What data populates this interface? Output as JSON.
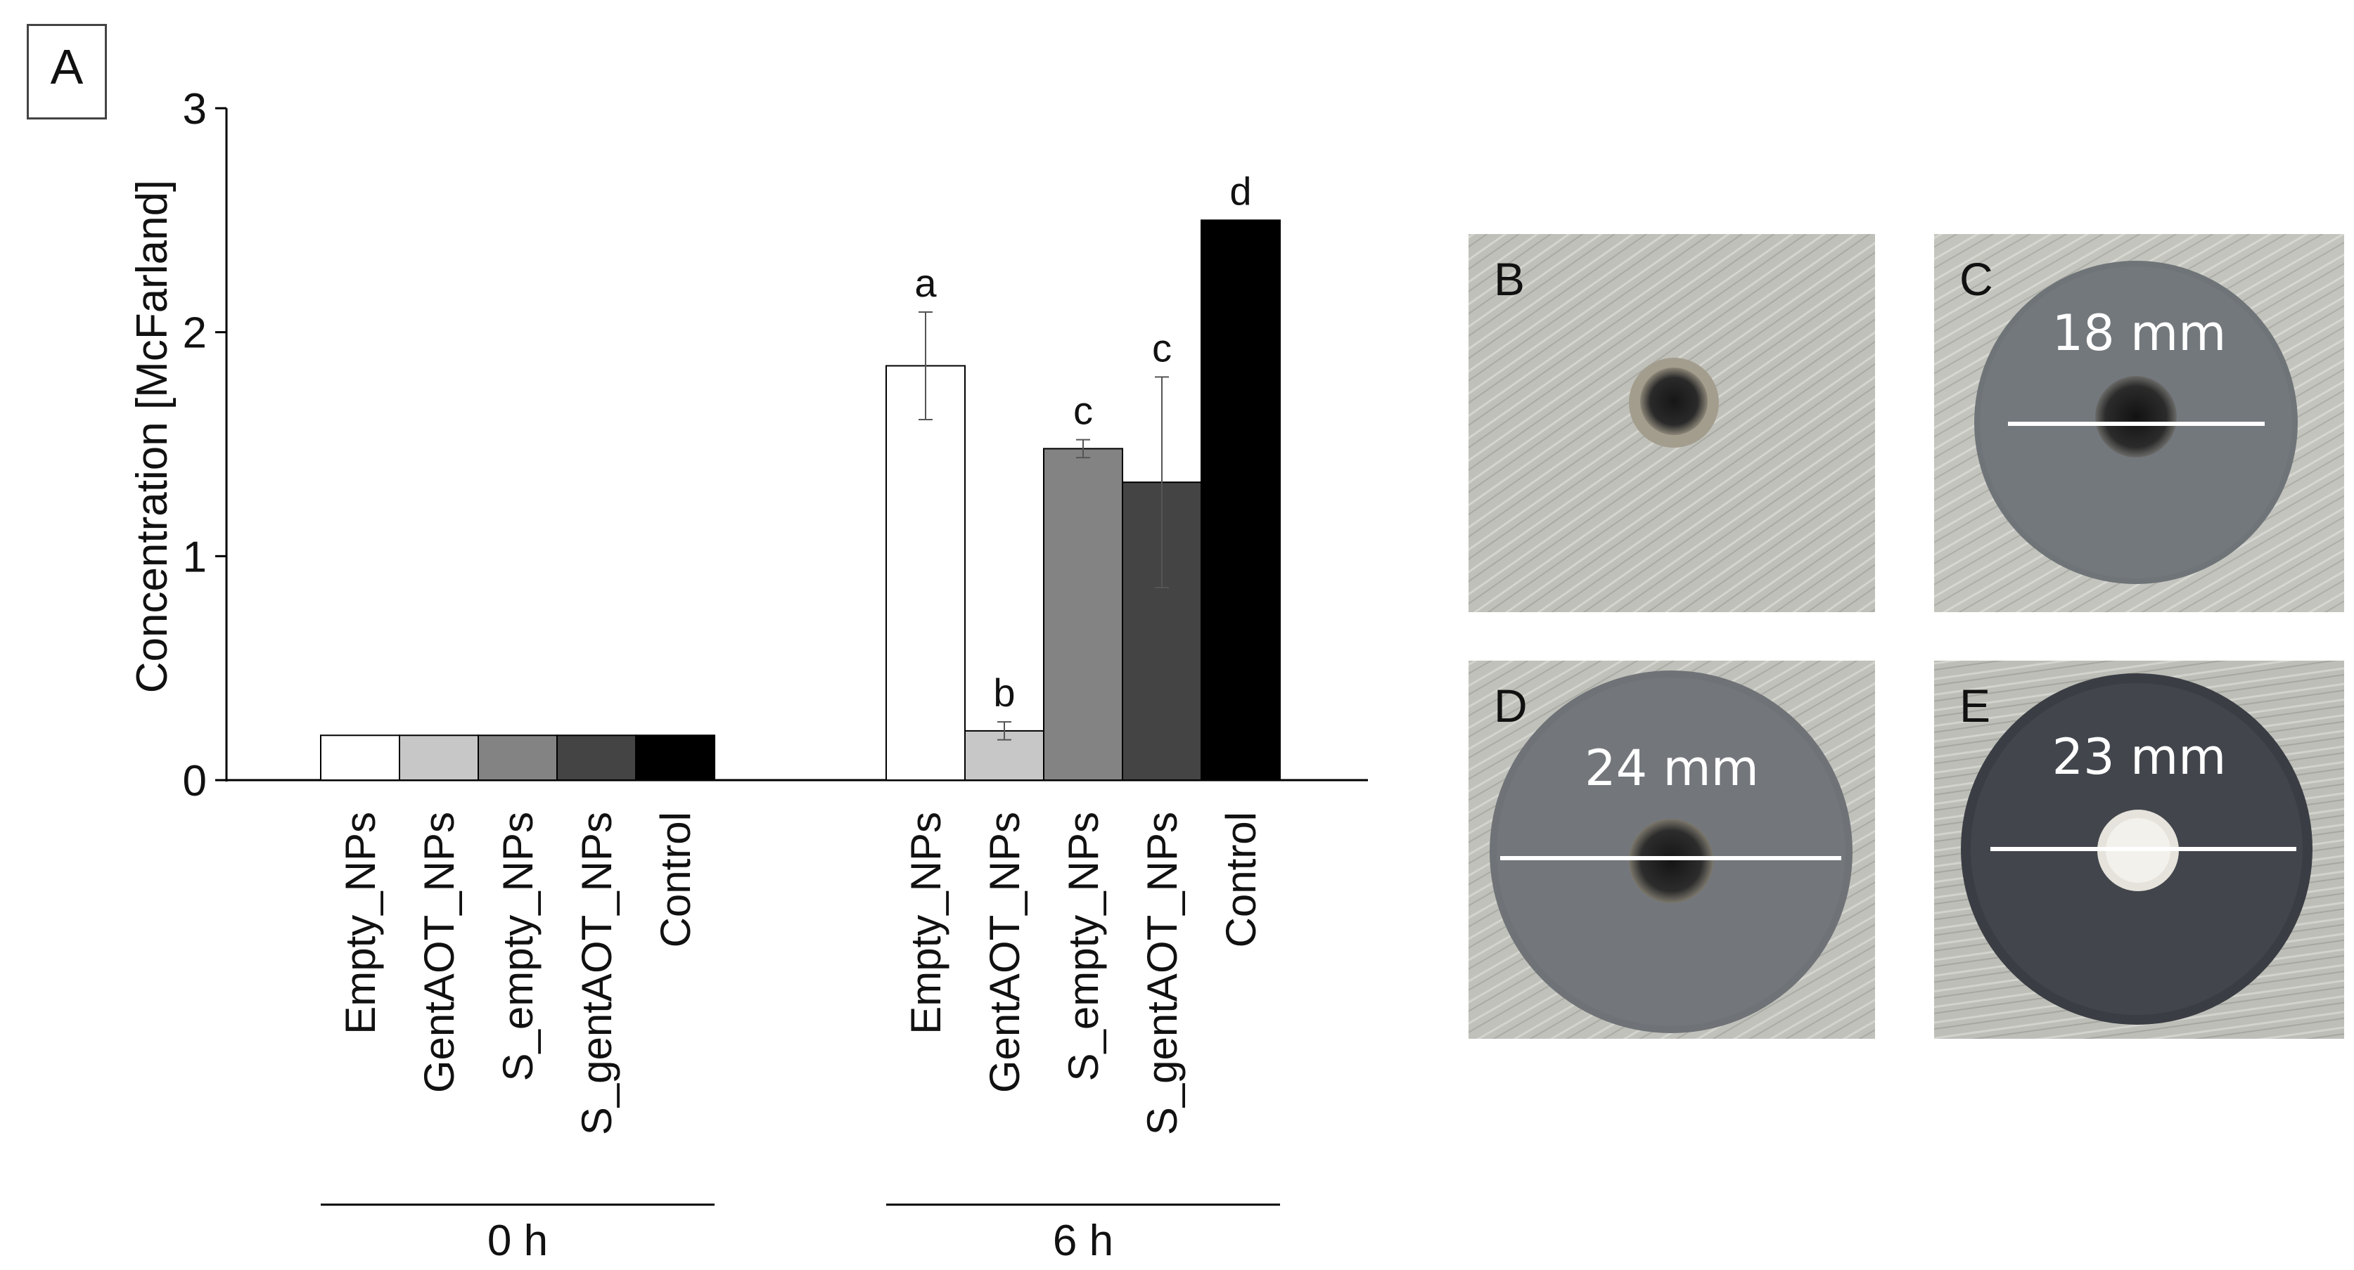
{
  "panel_label": "A",
  "chart_data": {
    "type": "bar",
    "ylabel": "Concentration [McFarland]",
    "xlabel": "",
    "ylim": [
      0,
      3
    ],
    "yticks": [
      0,
      1,
      2,
      3
    ],
    "categories": [
      "Empty_NPs",
      "GentAOT_NPs",
      "S_empty_NPs",
      "S_gentAOT_NPs",
      "Control"
    ],
    "colors": [
      "#ffffff",
      "#c7c7c7",
      "#838383",
      "#444444",
      "#000000"
    ],
    "groups": [
      {
        "label": "0 h",
        "values": [
          0.2,
          0.2,
          0.2,
          0.2,
          0.2
        ],
        "errors": [
          0,
          0,
          0,
          0,
          0
        ],
        "letters": [
          "",
          "",
          "",
          "",
          ""
        ]
      },
      {
        "label": "6 h",
        "values": [
          1.85,
          0.22,
          1.48,
          1.33,
          2.5
        ],
        "errors": [
          0.24,
          0.04,
          0.04,
          0.47,
          0
        ],
        "letters": [
          "a",
          "b",
          "c",
          "c",
          "d"
        ]
      }
    ]
  },
  "photos": [
    {
      "letter": "B",
      "measure": ""
    },
    {
      "letter": "C",
      "measure": "18 mm"
    },
    {
      "letter": "D",
      "measure": "24 mm"
    },
    {
      "letter": "E",
      "measure": "23 mm"
    }
  ]
}
